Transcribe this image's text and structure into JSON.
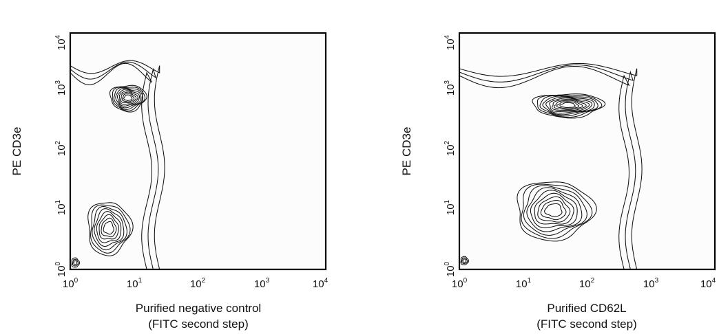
{
  "chart_data": [
    {
      "type": "contour",
      "scale": "log",
      "xlim": [
        1,
        10000
      ],
      "ylim": [
        1,
        10000
      ],
      "tick_base": "10",
      "x_ticks_exp": [
        "0",
        "1",
        "2",
        "3",
        "4"
      ],
      "y_ticks_exp": [
        "0",
        "1",
        "2",
        "3",
        "4"
      ],
      "xlabel": "Purified negative control",
      "xlabel2": "(FITC second step)",
      "ylabel": "PE CD3e",
      "populations": [
        {
          "x": 8,
          "y": 800,
          "x_spread": 0.28,
          "y_spread": 0.22,
          "levels": 9
        },
        {
          "x": 4,
          "y": 5,
          "x_spread": 0.34,
          "y_spread": 0.45,
          "levels": 8
        },
        {
          "x": 1.2,
          "y": 1.3,
          "x_spread": 0.06,
          "y_spread": 0.08,
          "levels": 3
        }
      ],
      "envelope": {
        "x_max": 25,
        "y_max": 2800
      }
    },
    {
      "type": "contour",
      "scale": "log",
      "xlim": [
        1,
        10000
      ],
      "ylim": [
        1,
        10000
      ],
      "tick_base": "10",
      "x_ticks_exp": [
        "0",
        "1",
        "2",
        "3",
        "4"
      ],
      "y_ticks_exp": [
        "0",
        "1",
        "2",
        "3",
        "4"
      ],
      "xlabel": "Purified CD62L",
      "xlabel2": "(FITC second step)",
      "ylabel": "PE CD3e",
      "populations": [
        {
          "x": 50,
          "y": 600,
          "x_spread": 0.55,
          "y_spread": 0.2,
          "levels": 10
        },
        {
          "x": 30,
          "y": 10,
          "x_spread": 0.6,
          "y_spread": 0.5,
          "levels": 9
        },
        {
          "x": 1.2,
          "y": 1.4,
          "x_spread": 0.06,
          "y_spread": 0.07,
          "levels": 3
        }
      ],
      "envelope": {
        "x_max": 600,
        "y_max": 2500
      }
    }
  ]
}
